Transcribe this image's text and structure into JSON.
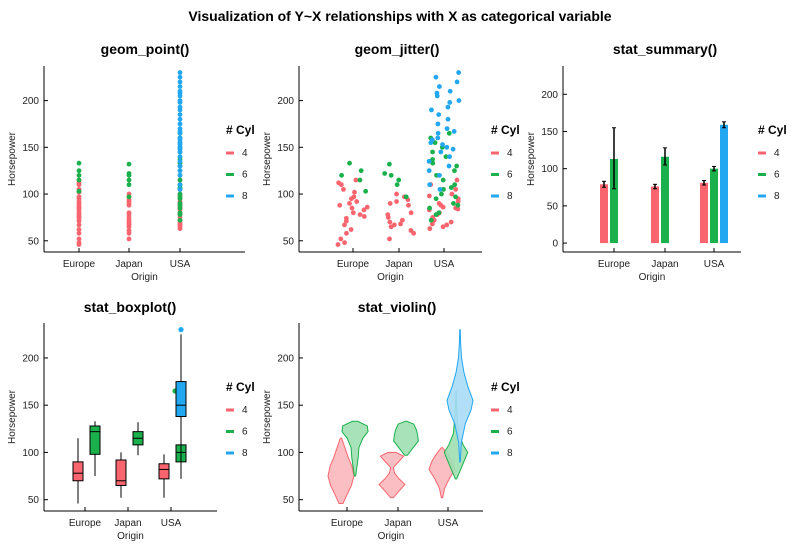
{
  "figure": {
    "title": "Visualization of Y~X relationships with X as categorical variable"
  },
  "colors": {
    "4": "#f8656e",
    "6": "#1ab04b",
    "8": "#22a7f0"
  },
  "chart_data": [
    {
      "type": "scatter",
      "title": "geom_point()",
      "xlabel": "Origin",
      "ylabel": "Horsepower",
      "categories": [
        "Europe",
        "Japan",
        "USA"
      ],
      "yticks": [
        50,
        100,
        150,
        200
      ],
      "ylim": [
        38,
        237
      ],
      "legend": {
        "title": "# Cyl",
        "entries": [
          "4",
          "6",
          "8"
        ],
        "placement": "right"
      },
      "series": [
        {
          "name": "4",
          "points": {
            "Europe": [
              46,
              48,
              52,
              58,
              62,
              67,
              71,
              74,
              76,
              78,
              80,
              83,
              85,
              86,
              88,
              90,
              92,
              95,
              97,
              102,
              105,
              110,
              112,
              115
            ],
            "Japan": [
              52,
              58,
              61,
              65,
              67,
              68,
              70,
              72,
              75,
              78,
              80,
              88,
              90,
              92,
              94,
              97,
              100
            ],
            "USA": [
              63,
              65,
              67,
              68,
              70,
              72,
              75,
              78,
              80,
              83,
              84,
              85,
              86,
              88,
              90,
              92,
              95,
              98,
              100,
              105,
              110,
              115
            ]
          }
        },
        {
          "name": "6",
          "points": {
            "Europe": [
              103,
              115,
              120,
              125,
              133
            ],
            "Japan": [
              97,
              110,
              115,
              120,
              122,
              132
            ],
            "USA": [
              72,
              78,
              80,
              85,
              88,
              90,
              95,
              97,
              100,
              105,
              107,
              110,
              115,
              120,
              125,
              130,
              133,
              137,
              140,
              145,
              150,
              155,
              160,
              165
            ]
          }
        },
        {
          "name": "8",
          "points": {
            "Europe": [],
            "Japan": [],
            "USA": [
              105,
              110,
              120,
              125,
              130,
              135,
              140,
              145,
              148,
              150,
              153,
              155,
              158,
              160,
              165,
              167,
              170,
              175,
              180,
              185,
              190,
              193,
              198,
              200,
              205,
              208,
              210,
              215,
              220,
              225,
              230
            ]
          }
        }
      ]
    },
    {
      "type": "scatter",
      "title": "geom_jitter()",
      "xlabel": "Origin",
      "ylabel": "Horsepower",
      "categories": [
        "Europe",
        "Japan",
        "USA"
      ],
      "yticks": [
        50,
        100,
        150,
        200
      ],
      "ylim": [
        38,
        237
      ],
      "legend": {
        "title": "# Cyl",
        "entries": [
          "4",
          "6",
          "8"
        ],
        "placement": "right"
      },
      "series": [
        {
          "name": "4",
          "points": {
            "Europe": [
              46,
              48,
              52,
              58,
              62,
              67,
              71,
              74,
              76,
              78,
              80,
              83,
              85,
              86,
              88,
              90,
              92,
              95,
              97,
              102,
              105,
              110,
              112,
              115
            ],
            "Japan": [
              52,
              58,
              61,
              65,
              67,
              68,
              70,
              72,
              75,
              78,
              80,
              88,
              90,
              92,
              94,
              97,
              100
            ],
            "USA": [
              63,
              65,
              67,
              68,
              70,
              72,
              75,
              78,
              80,
              83,
              84,
              85,
              86,
              88,
              90,
              92,
              95,
              98,
              100,
              105,
              110,
              115
            ]
          }
        },
        {
          "name": "6",
          "points": {
            "Europe": [
              103,
              115,
              120,
              125,
              133
            ],
            "Japan": [
              97,
              110,
              115,
              120,
              122,
              132
            ],
            "USA": [
              72,
              78,
              80,
              85,
              88,
              90,
              95,
              97,
              100,
              105,
              107,
              110,
              115,
              120,
              125,
              130,
              133,
              137,
              140,
              145,
              150,
              155,
              160,
              165
            ]
          }
        },
        {
          "name": "8",
          "points": {
            "Europe": [],
            "Japan": [],
            "USA": [
              105,
              110,
              120,
              125,
              130,
              135,
              140,
              145,
              148,
              150,
              153,
              155,
              158,
              160,
              165,
              167,
              170,
              175,
              180,
              185,
              190,
              193,
              198,
              200,
              205,
              208,
              210,
              215,
              220,
              225,
              230
            ]
          }
        }
      ]
    },
    {
      "type": "bar",
      "title": "stat_summary()",
      "xlabel": "Origin",
      "ylabel": "Horsepower",
      "categories": [
        "Europe",
        "Japan",
        "USA"
      ],
      "yticks": [
        0,
        50,
        100,
        150,
        200
      ],
      "ylim": [
        -12,
        238
      ],
      "legend": {
        "title": "# Cyl",
        "entries": [
          "4",
          "6",
          "8"
        ],
        "placement": "right"
      },
      "series": [
        {
          "name": "4",
          "values": [
            79,
            76,
            81
          ],
          "err_low": [
            75,
            73,
            78
          ],
          "err_high": [
            83,
            79,
            84
          ]
        },
        {
          "name": "6",
          "values": [
            113,
            116,
            100
          ],
          "err_low": [
            73,
            105,
            97
          ],
          "err_high": [
            155,
            128,
            103
          ]
        },
        {
          "name": "8",
          "values": [
            null,
            null,
            159
          ],
          "err_low": [
            null,
            null,
            155
          ],
          "err_high": [
            null,
            null,
            163
          ]
        }
      ]
    },
    {
      "type": "boxplot",
      "title": "stat_boxplot()",
      "xlabel": "Origin",
      "ylabel": "Horsepower",
      "categories": [
        "Europe",
        "Japan",
        "USA"
      ],
      "yticks": [
        50,
        100,
        150,
        200
      ],
      "ylim": [
        38,
        237
      ],
      "legend": {
        "title": "# Cyl",
        "entries": [
          "4",
          "6",
          "8"
        ],
        "placement": "right"
      },
      "series": [
        {
          "name": "4",
          "boxes": [
            {
              "cat": "Europe",
              "min": 46,
              "q1": 70,
              "median": 78,
              "q3": 90,
              "max": 115,
              "outliers": []
            },
            {
              "cat": "Japan",
              "min": 52,
              "q1": 65,
              "median": 70,
              "q3": 92,
              "max": 100,
              "outliers": []
            },
            {
              "cat": "USA",
              "min": 52,
              "q1": 72,
              "median": 82,
              "q3": 88,
              "max": 98,
              "outliers": []
            }
          ]
        },
        {
          "name": "6",
          "boxes": [
            {
              "cat": "Europe",
              "min": 75,
              "q1": 98,
              "median": 122,
              "q3": 128,
              "max": 133,
              "outliers": []
            },
            {
              "cat": "Japan",
              "min": 97,
              "q1": 108,
              "median": 115,
              "q3": 122,
              "max": 132,
              "outliers": []
            },
            {
              "cat": "USA",
              "min": 72,
              "q1": 90,
              "median": 100,
              "q3": 108,
              "max": 118,
              "outliers": [
                165
              ]
            }
          ]
        },
        {
          "name": "8",
          "boxes": [
            {
              "cat": "USA",
              "min": 90,
              "q1": 138,
              "median": 150,
              "q3": 175,
              "max": 225,
              "outliers": [
                230
              ]
            }
          ]
        }
      ]
    },
    {
      "type": "violin",
      "title": "stat_violin()",
      "xlabel": "Origin",
      "ylabel": "Horsepower",
      "categories": [
        "Europe",
        "Japan",
        "USA"
      ],
      "yticks": [
        50,
        100,
        150,
        200
      ],
      "ylim": [
        38,
        237
      ],
      "legend": {
        "title": "# Cyl",
        "entries": [
          "4",
          "6",
          "8"
        ],
        "placement": "right"
      },
      "series": [
        {
          "name": "4",
          "violins": [
            {
              "cat": "Europe",
              "min": 46,
              "max": 115,
              "profile": [
                [
                  46,
                  0.15
                ],
                [
                  55,
                  0.45
                ],
                [
                  65,
                  0.8
                ],
                [
                  75,
                  1.0
                ],
                [
                  85,
                  0.85
                ],
                [
                  95,
                  0.55
                ],
                [
                  105,
                  0.3
                ],
                [
                  115,
                  0.05
                ]
              ]
            },
            {
              "cat": "Japan",
              "min": 52,
              "max": 100,
              "profile": [
                [
                  52,
                  0.1
                ],
                [
                  60,
                  0.6
                ],
                [
                  66,
                  1.0
                ],
                [
                  72,
                  0.55
                ],
                [
                  78,
                  0.2
                ],
                [
                  84,
                  0.1
                ],
                [
                  90,
                  0.5
                ],
                [
                  96,
                  0.9
                ],
                [
                  100,
                  0.3
                ]
              ]
            },
            {
              "cat": "USA",
              "min": 52,
              "max": 105,
              "profile": [
                [
                  52,
                  0.05
                ],
                [
                  62,
                  0.2
                ],
                [
                  72,
                  0.55
                ],
                [
                  82,
                  1.0
                ],
                [
                  90,
                  0.8
                ],
                [
                  98,
                  0.45
                ],
                [
                  105,
                  0.05
                ]
              ]
            }
          ]
        },
        {
          "name": "6",
          "violins": [
            {
              "cat": "Europe",
              "min": 75,
              "max": 133,
              "profile": [
                [
                  75,
                  0.05
                ],
                [
                  85,
                  0.15
                ],
                [
                  95,
                  0.25
                ],
                [
                  105,
                  0.3
                ],
                [
                  115,
                  0.6
                ],
                [
                  122,
                  1.0
                ],
                [
                  128,
                  0.95
                ],
                [
                  133,
                  0.2
                ]
              ]
            },
            {
              "cat": "Japan",
              "min": 97,
              "max": 133,
              "profile": [
                [
                  97,
                  0.1
                ],
                [
                  105,
                  0.55
                ],
                [
                  112,
                  0.95
                ],
                [
                  118,
                  0.9
                ],
                [
                  124,
                  0.8
                ],
                [
                  130,
                  0.6
                ],
                [
                  133,
                  0.05
                ]
              ]
            },
            {
              "cat": "USA",
              "min": 72,
              "max": 165,
              "profile": [
                [
                  72,
                  0.05
                ],
                [
                  80,
                  0.3
                ],
                [
                  90,
                  0.6
                ],
                [
                  100,
                  0.9
                ],
                [
                  108,
                  0.55
                ],
                [
                  120,
                  0.2
                ],
                [
                  140,
                  0.08
                ],
                [
                  165,
                  0.01
                ]
              ]
            }
          ]
        },
        {
          "name": "8",
          "violins": [
            {
              "cat": "USA",
              "min": 90,
              "max": 230,
              "profile": [
                [
                  90,
                  0.02
                ],
                [
                  110,
                  0.1
                ],
                [
                  130,
                  0.4
                ],
                [
                  145,
                  0.85
                ],
                [
                  155,
                  1.0
                ],
                [
                  170,
                  0.6
                ],
                [
                  185,
                  0.3
                ],
                [
                  200,
                  0.12
                ],
                [
                  215,
                  0.05
                ],
                [
                  230,
                  0.02
                ]
              ]
            }
          ]
        }
      ]
    }
  ]
}
